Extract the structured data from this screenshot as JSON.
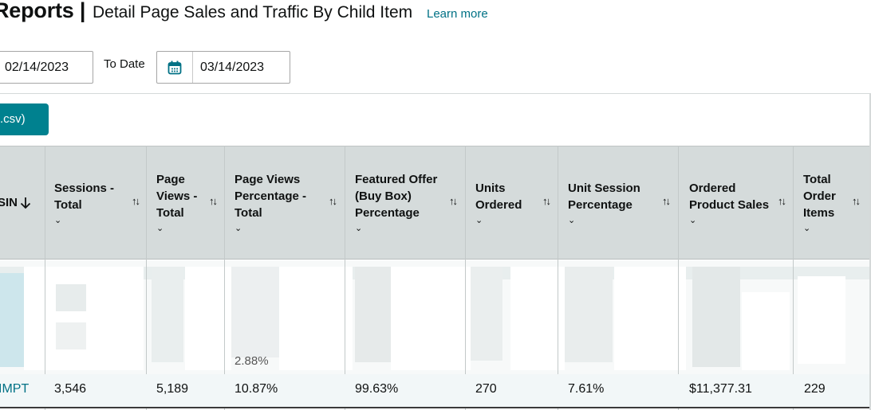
{
  "header": {
    "title_main": "Reports |",
    "title_sub": "Detail Page Sales and Traffic By Child Item",
    "learn_more": "Learn more"
  },
  "date_range": {
    "from_value": "02/14/2023",
    "to_label": "To Date",
    "to_value": "03/14/2023"
  },
  "actions": {
    "download_label": ".csv)"
  },
  "table": {
    "columns": [
      {
        "label_lines": [
          "SIN"
        ],
        "sort_icon": "arrow-down"
      },
      {
        "label_lines": [
          "Sessions -",
          "Total"
        ],
        "sort_icon": "sort-updown"
      },
      {
        "label_lines": [
          "Page",
          "Views -",
          "Total"
        ],
        "sort_icon": "sort-updown"
      },
      {
        "label_lines": [
          "Page Views",
          "Percentage -",
          "Total"
        ],
        "sort_icon": "sort-updown"
      },
      {
        "label_lines": [
          "Featured Offer",
          "(Buy Box)",
          "Percentage"
        ],
        "sort_icon": "sort-updown"
      },
      {
        "label_lines": [
          "Units",
          "Ordered"
        ],
        "sort_icon": "sort-updown"
      },
      {
        "label_lines": [
          "Unit Session",
          "Percentage"
        ],
        "sort_icon": "sort-updown"
      },
      {
        "label_lines": [
          "Ordered",
          "Product Sales"
        ],
        "sort_icon": "sort-updown"
      },
      {
        "label_lines": [
          "Total",
          "Order",
          "Items"
        ],
        "sort_icon": "sort-updown"
      }
    ],
    "partial_visible": [
      "2.88%"
    ],
    "visible_row": [
      "IMPT",
      "3,546",
      "5,189",
      "10.87%",
      "99.63%",
      "270",
      "7.61%",
      "$11,377.31",
      "229"
    ]
  }
}
